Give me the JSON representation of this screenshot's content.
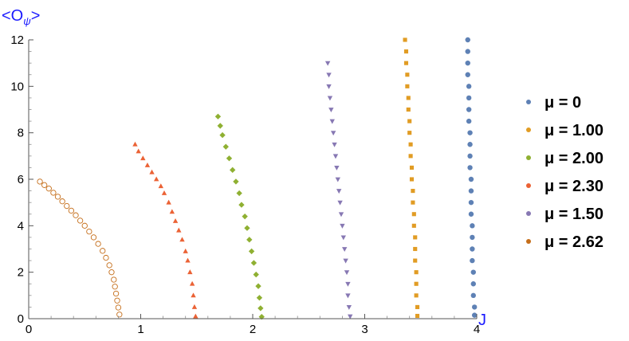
{
  "chart_data": {
    "type": "scatter",
    "xlabel": "J",
    "ylabel": {
      "base": "<O",
      "sub": "ψ",
      "close": ">"
    },
    "xlim": [
      0,
      4
    ],
    "ylim": [
      0,
      12
    ],
    "xticks": [
      0,
      1,
      2,
      3,
      4
    ],
    "yticks": [
      0,
      2,
      4,
      6,
      8,
      10,
      12
    ],
    "grid": false,
    "legend_position": "right",
    "series": [
      {
        "name": "μ = 0",
        "color": "#5e81b5",
        "marker": "circle",
        "points": [
          [
            3.92,
            12.0
          ],
          [
            3.92,
            11.5
          ],
          [
            3.92,
            11.0
          ],
          [
            3.92,
            10.5
          ],
          [
            3.93,
            10.0
          ],
          [
            3.93,
            9.5
          ],
          [
            3.93,
            9.0
          ],
          [
            3.93,
            8.5
          ],
          [
            3.94,
            8.0
          ],
          [
            3.94,
            7.5
          ],
          [
            3.94,
            7.0
          ],
          [
            3.94,
            6.5
          ],
          [
            3.95,
            6.0
          ],
          [
            3.95,
            5.5
          ],
          [
            3.95,
            5.0
          ],
          [
            3.95,
            4.5
          ],
          [
            3.96,
            4.0
          ],
          [
            3.96,
            3.5
          ],
          [
            3.96,
            3.0
          ],
          [
            3.96,
            2.5
          ],
          [
            3.97,
            2.0
          ],
          [
            3.97,
            1.5
          ],
          [
            3.97,
            1.0
          ],
          [
            3.98,
            0.5
          ],
          [
            3.98,
            0.15
          ]
        ]
      },
      {
        "name": "μ = 1.00",
        "color": "#e19c24",
        "marker": "square",
        "points": [
          [
            3.36,
            12.0
          ],
          [
            3.37,
            11.5
          ],
          [
            3.37,
            11.0
          ],
          [
            3.38,
            10.5
          ],
          [
            3.38,
            10.0
          ],
          [
            3.39,
            9.5
          ],
          [
            3.39,
            9.0
          ],
          [
            3.4,
            8.5
          ],
          [
            3.4,
            8.0
          ],
          [
            3.41,
            7.5
          ],
          [
            3.41,
            7.0
          ],
          [
            3.42,
            6.5
          ],
          [
            3.42,
            6.0
          ],
          [
            3.43,
            5.5
          ],
          [
            3.43,
            5.0
          ],
          [
            3.44,
            4.5
          ],
          [
            3.44,
            4.0
          ],
          [
            3.45,
            3.5
          ],
          [
            3.45,
            3.0
          ],
          [
            3.45,
            2.5
          ],
          [
            3.46,
            2.0
          ],
          [
            3.46,
            1.5
          ],
          [
            3.46,
            1.0
          ],
          [
            3.47,
            0.5
          ],
          [
            3.47,
            0.12
          ]
        ]
      },
      {
        "name": "μ = 2.00",
        "color": "#8fb032",
        "marker": "diamond",
        "points": [
          [
            1.69,
            8.7
          ],
          [
            1.71,
            8.3
          ],
          [
            1.73,
            7.9
          ],
          [
            1.76,
            7.4
          ],
          [
            1.79,
            6.9
          ],
          [
            1.82,
            6.4
          ],
          [
            1.85,
            5.9
          ],
          [
            1.88,
            5.4
          ],
          [
            1.9,
            4.9
          ],
          [
            1.93,
            4.4
          ],
          [
            1.95,
            3.9
          ],
          [
            1.97,
            3.4
          ],
          [
            1.99,
            2.9
          ],
          [
            2.01,
            2.4
          ],
          [
            2.03,
            1.9
          ],
          [
            2.05,
            1.4
          ],
          [
            2.06,
            0.9
          ],
          [
            2.07,
            0.45
          ],
          [
            2.08,
            0.08
          ]
        ]
      },
      {
        "name": "μ = 2.30",
        "color": "#eb6235",
        "marker": "triangle-up",
        "points": [
          [
            0.95,
            7.5
          ],
          [
            0.98,
            7.2
          ],
          [
            1.02,
            6.9
          ],
          [
            1.06,
            6.6
          ],
          [
            1.1,
            6.3
          ],
          [
            1.14,
            6.0
          ],
          [
            1.18,
            5.7
          ],
          [
            1.21,
            5.4
          ],
          [
            1.25,
            5.0
          ],
          [
            1.28,
            4.6
          ],
          [
            1.31,
            4.2
          ],
          [
            1.34,
            3.8
          ],
          [
            1.37,
            3.4
          ],
          [
            1.4,
            2.9
          ],
          [
            1.42,
            2.5
          ],
          [
            1.44,
            2.0
          ],
          [
            1.46,
            1.5
          ],
          [
            1.47,
            1.0
          ],
          [
            1.48,
            0.5
          ],
          [
            1.49,
            0.1
          ]
        ]
      },
      {
        "name": "μ = 1.50",
        "color": "#8778b3",
        "marker": "triangle-down",
        "points": [
          [
            2.67,
            11.0
          ],
          [
            2.68,
            10.5
          ],
          [
            2.68,
            10.0
          ],
          [
            2.69,
            9.5
          ],
          [
            2.7,
            9.0
          ],
          [
            2.71,
            8.5
          ],
          [
            2.72,
            8.0
          ],
          [
            2.73,
            7.5
          ],
          [
            2.74,
            7.0
          ],
          [
            2.75,
            6.5
          ],
          [
            2.76,
            6.0
          ],
          [
            2.77,
            5.5
          ],
          [
            2.78,
            5.0
          ],
          [
            2.79,
            4.5
          ],
          [
            2.8,
            4.0
          ],
          [
            2.81,
            3.5
          ],
          [
            2.82,
            3.0
          ],
          [
            2.83,
            2.5
          ],
          [
            2.84,
            2.0
          ],
          [
            2.85,
            1.5
          ],
          [
            2.85,
            1.0
          ],
          [
            2.86,
            0.5
          ],
          [
            2.87,
            0.1
          ]
        ]
      },
      {
        "name": "μ = 2.62",
        "color": "#c56e1a",
        "marker": "circle-open",
        "points": [
          [
            0.1,
            5.9
          ],
          [
            0.14,
            5.75
          ],
          [
            0.18,
            5.6
          ],
          [
            0.22,
            5.42
          ],
          [
            0.26,
            5.25
          ],
          [
            0.3,
            5.05
          ],
          [
            0.34,
            4.85
          ],
          [
            0.38,
            4.65
          ],
          [
            0.42,
            4.45
          ],
          [
            0.46,
            4.22
          ],
          [
            0.5,
            4.0
          ],
          [
            0.54,
            3.75
          ],
          [
            0.58,
            3.5
          ],
          [
            0.62,
            3.22
          ],
          [
            0.66,
            2.92
          ],
          [
            0.69,
            2.62
          ],
          [
            0.72,
            2.3
          ],
          [
            0.74,
            2.0
          ],
          [
            0.76,
            1.68
          ],
          [
            0.77,
            1.38
          ],
          [
            0.78,
            1.08
          ],
          [
            0.79,
            0.78
          ],
          [
            0.8,
            0.48
          ],
          [
            0.81,
            0.18
          ]
        ]
      }
    ]
  }
}
